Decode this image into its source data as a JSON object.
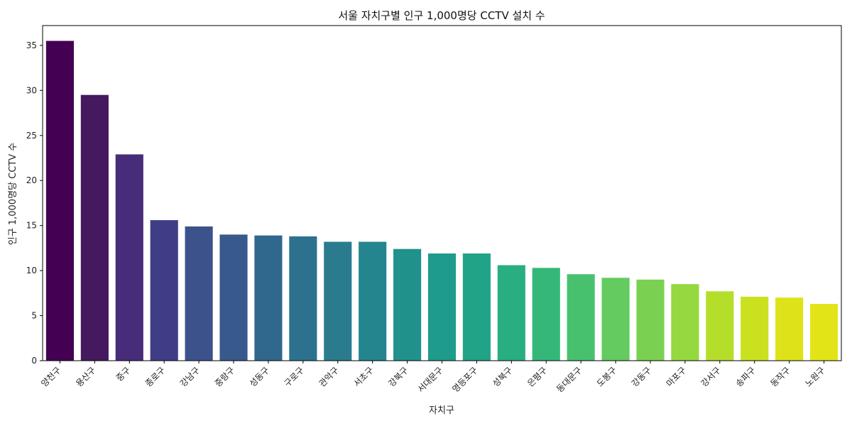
{
  "chart_data": {
    "type": "bar",
    "title": "서울 자치구별 인구 1,000명당 CCTV 설치 수",
    "xlabel": "자치구",
    "ylabel": "인구 1,000명당 CCTV 수",
    "categories": [
      "양천구",
      "용산구",
      "중구",
      "종로구",
      "강남구",
      "중랑구",
      "성동구",
      "구로구",
      "관악구",
      "서초구",
      "강북구",
      "서대문구",
      "영등포구",
      "성북구",
      "은평구",
      "동대문구",
      "도봉구",
      "강동구",
      "마포구",
      "강서구",
      "송파구",
      "동작구",
      "노원구"
    ],
    "values": [
      35.5,
      29.5,
      22.9,
      15.6,
      14.9,
      14.0,
      13.9,
      13.8,
      13.2,
      13.2,
      12.4,
      11.9,
      11.9,
      10.6,
      10.3,
      9.6,
      9.2,
      9.0,
      8.5,
      7.7,
      7.1,
      7.0,
      6.3
    ],
    "ylim": [
      0,
      37.2
    ],
    "yticks": [
      0,
      5,
      10,
      15,
      20,
      25,
      30,
      35
    ],
    "grid": false,
    "legend": "none",
    "palette": "viridis",
    "colors": [
      "#440154",
      "#46185e",
      "#472c7a",
      "#3f3d86",
      "#3b528b",
      "#38598c",
      "#30678d",
      "#2c728e",
      "#2a7b8e",
      "#25858e",
      "#21918c",
      "#1e9b8a",
      "#20a386",
      "#28ae80",
      "#35b779",
      "#48c16e",
      "#63cb5f",
      "#7ad151",
      "#95d840",
      "#b5de2b",
      "#cae11f",
      "#dde318",
      "#e3e418"
    ]
  }
}
